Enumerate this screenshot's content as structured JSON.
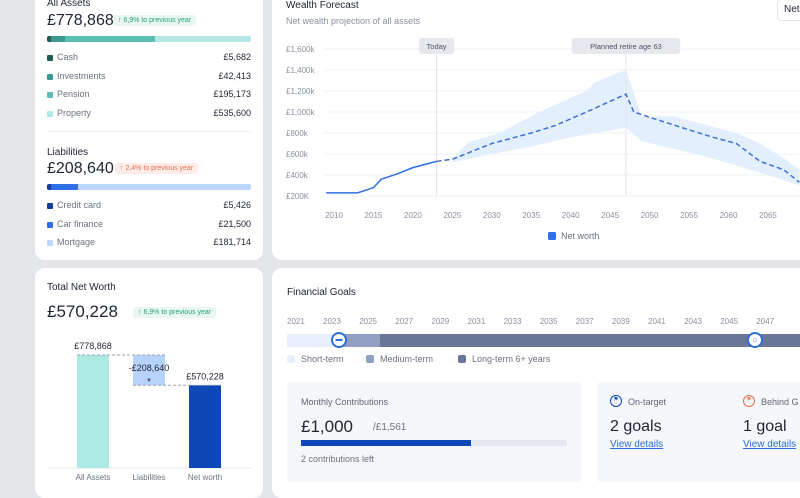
{
  "assets": {
    "title": "All Assets",
    "total": "£778,868",
    "badge": "↑ 6,9% to previous year",
    "items": [
      {
        "label": "Cash",
        "value": "£5,682",
        "color": "#235a52"
      },
      {
        "label": "Investments",
        "value": "£42,413",
        "color": "#3c9a93"
      },
      {
        "label": "Pension",
        "value": "£195,173",
        "color": "#5cbdb2"
      },
      {
        "label": "Property",
        "value": "£535,600",
        "color": "#b4e8e4"
      }
    ]
  },
  "liabilities": {
    "title": "Liabilities",
    "total": "£208,640",
    "badge": "↑ 2,4% to previous year",
    "items": [
      {
        "label": "Credit card",
        "value": "£5,426",
        "color": "#123f9c"
      },
      {
        "label": "Car finance",
        "value": "£21,500",
        "color": "#2f6fe8"
      },
      {
        "label": "Mortgage",
        "value": "£181,714",
        "color": "#bcd7fb"
      }
    ]
  },
  "net_worth": {
    "title": "Total Net Worth",
    "total": "£570,228",
    "badge": "↑ 6,9% to previous year",
    "bars": [
      {
        "label": "All Assets",
        "value": 778868,
        "text": "£778,868",
        "color": "#aeeae4"
      },
      {
        "label": "Liabilities",
        "value": -208640,
        "text": "-£208,640",
        "color": "#b6d3fb"
      },
      {
        "label": "Net worth",
        "value": 570228,
        "text": "£570,228",
        "color": "#0e47b6"
      }
    ]
  },
  "forecast": {
    "title": "Wealth Forecast",
    "subtitle": "Net wealth projection of all assets",
    "dropdown": "Net",
    "chart_data": {
      "type": "line",
      "y_ticks": [
        "£1,600k",
        "£1,400k",
        "£1,200k",
        "£1,000k",
        "£800k",
        "£600k",
        "£400k",
        "£200K"
      ],
      "ylim": [
        200,
        1600
      ],
      "x_ticks": [
        "2010",
        "2015",
        "2020",
        "2025",
        "2030",
        "2035",
        "2040",
        "2045",
        "2050",
        "2055",
        "2060",
        "2065"
      ],
      "legend": "Net worth",
      "color": "#2f6fe8",
      "markers": [
        {
          "label": "Today",
          "x": 2023
        },
        {
          "label": "Planned retire age 63",
          "x": 2047
        }
      ],
      "actual": [
        [
          2009,
          230
        ],
        [
          2013,
          230
        ],
        [
          2015,
          280
        ],
        [
          2016,
          360
        ],
        [
          2018,
          410
        ],
        [
          2020,
          470
        ],
        [
          2023,
          530
        ]
      ],
      "projected": [
        [
          2023,
          530
        ],
        [
          2025,
          550
        ],
        [
          2030,
          700
        ],
        [
          2035,
          800
        ],
        [
          2038,
          870
        ],
        [
          2042,
          1000
        ],
        [
          2047,
          1170
        ],
        [
          2048,
          1000
        ],
        [
          2050,
          950
        ],
        [
          2055,
          830
        ],
        [
          2058,
          760
        ],
        [
          2061,
          700
        ],
        [
          2064,
          530
        ],
        [
          2067,
          450
        ],
        [
          2069,
          330
        ]
      ],
      "band_upper": [
        [
          2025,
          550
        ],
        [
          2027,
          710
        ],
        [
          2031,
          800
        ],
        [
          2036,
          1000
        ],
        [
          2042,
          1200
        ],
        [
          2043,
          1280
        ],
        [
          2047,
          1400
        ],
        [
          2049,
          960
        ],
        [
          2053,
          960
        ],
        [
          2061,
          800
        ],
        [
          2064,
          700
        ],
        [
          2067,
          560
        ],
        [
          2069,
          450
        ]
      ],
      "band_lower": [
        [
          2025,
          520
        ],
        [
          2030,
          600
        ],
        [
          2035,
          670
        ],
        [
          2040,
          760
        ],
        [
          2047,
          850
        ],
        [
          2049,
          720
        ],
        [
          2057,
          580
        ],
        [
          2065,
          400
        ],
        [
          2069,
          300
        ]
      ]
    }
  },
  "goals": {
    "title": "Financial Goals",
    "years": [
      "2021",
      "2023",
      "2025",
      "2027",
      "2029",
      "2031",
      "2033",
      "2035",
      "2037",
      "2039",
      "2041",
      "2043",
      "2045",
      "2047"
    ],
    "legend": [
      "Short-term",
      "Medium-term",
      "Long-term 6+ years"
    ],
    "monthly": {
      "title": "Monthly Contributions",
      "value": "£1,000",
      "target": "/£1,561",
      "progress": 0.64,
      "note": "2 contributions left"
    },
    "on_target": {
      "label": "On-target",
      "count": "2 goals",
      "link": "View details"
    },
    "behind": {
      "label": "Behind G",
      "count": "1 goal",
      "link": "View details"
    }
  }
}
